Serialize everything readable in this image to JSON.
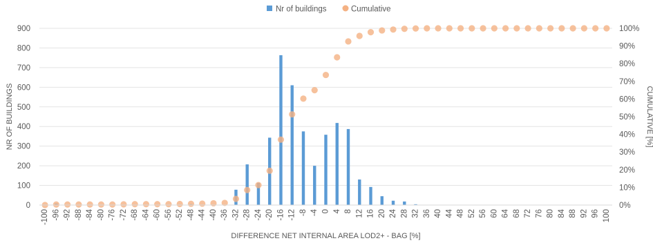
{
  "chart_data": {
    "type": "bar",
    "x": [
      -100,
      -96,
      -92,
      -88,
      -84,
      -80,
      -76,
      -72,
      -68,
      -64,
      -60,
      -56,
      -52,
      -48,
      -44,
      -40,
      -36,
      -32,
      -28,
      -24,
      -20,
      -16,
      -12,
      -8,
      -4,
      0,
      4,
      8,
      12,
      16,
      20,
      24,
      28,
      32,
      36,
      40,
      44,
      48,
      52,
      56,
      60,
      64,
      68,
      72,
      76,
      80,
      84,
      88,
      92,
      96,
      100
    ],
    "series": [
      {
        "name": "Nr of buildings",
        "type": "bar",
        "axis": "left",
        "color": "#5B9BD5",
        "values": [
          0,
          8,
          0,
          0,
          0,
          0,
          0,
          0,
          0,
          0,
          0,
          0,
          0,
          5,
          0,
          0,
          0,
          78,
          207,
          113,
          343,
          763,
          610,
          375,
          200,
          358,
          418,
          387,
          130,
          92,
          45,
          22,
          18,
          4,
          1,
          0,
          0,
          0,
          0,
          0,
          0,
          0,
          0,
          0,
          0,
          0,
          0,
          0,
          0,
          0,
          0
        ]
      },
      {
        "name": "Cumulative",
        "type": "scatter",
        "axis": "right",
        "color": "#F4B183",
        "values": [
          0,
          0.3,
          0.3,
          0.3,
          0.3,
          0.3,
          0.3,
          0.4,
          0.5,
          0.5,
          0.5,
          0.5,
          0.6,
          0.7,
          0.8,
          1,
          1.2,
          3.5,
          8.5,
          11.3,
          19.4,
          37,
          51.3,
          60.2,
          65,
          73.6,
          83.6,
          92.6,
          95.7,
          97.8,
          98.8,
          99.3,
          99.7,
          99.9,
          100,
          100,
          100,
          100,
          100,
          100,
          100,
          100,
          100,
          100,
          100,
          100,
          100,
          100,
          100,
          100,
          100
        ]
      }
    ],
    "title": "",
    "xlabel": "DIFFERENCE NET INTERNAL AREA LOD2+ - BAG [%]",
    "ylabel": "NR OF BUILDINGS",
    "y2label": "CUMULATIVE [%]",
    "ylim": [
      0,
      900
    ],
    "yticks": [
      0,
      100,
      200,
      300,
      400,
      500,
      600,
      700,
      800,
      900
    ],
    "y2lim": [
      0,
      100
    ],
    "y2ticks": [
      "0%",
      "10%",
      "20%",
      "30%",
      "40%",
      "50%",
      "60%",
      "70%",
      "80%",
      "90%",
      "100%"
    ],
    "grid": true,
    "legend_position": "top-center"
  }
}
